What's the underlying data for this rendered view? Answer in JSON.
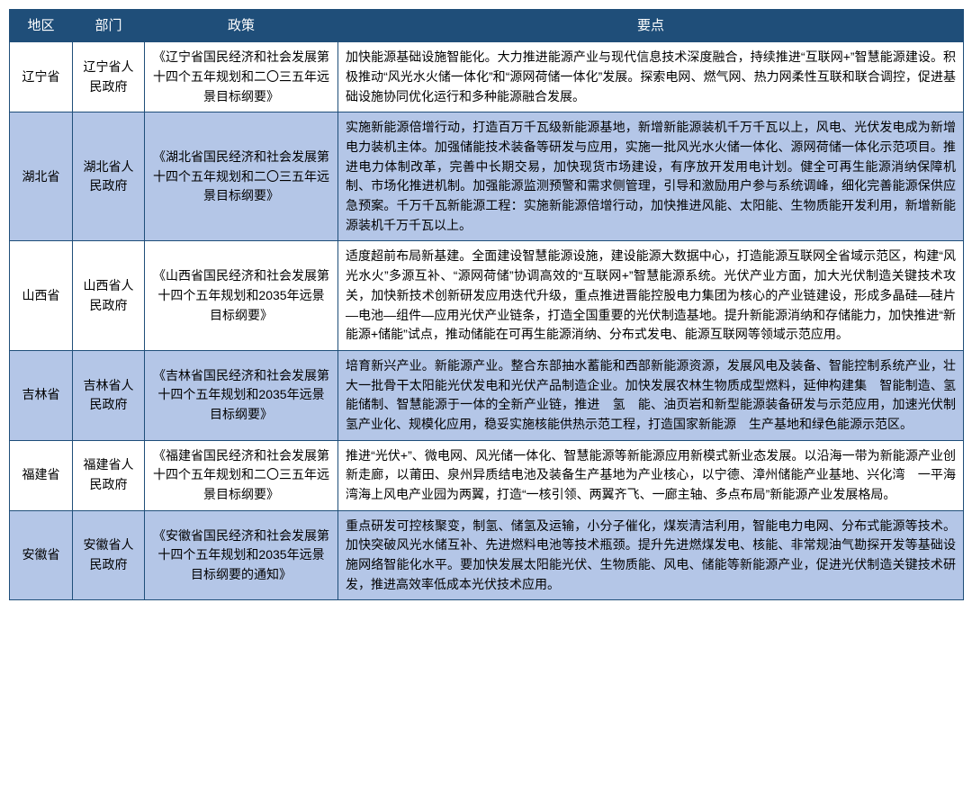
{
  "table": {
    "header_bg": "#1f4e79",
    "header_fg": "#ffffff",
    "row_alt_bg": "#b4c6e7",
    "row_bg": "#ffffff",
    "border_color": "#1f4e79",
    "font_size_header": 15,
    "font_size_body": 14,
    "columns": [
      "地区",
      "部门",
      "政策",
      "要点"
    ],
    "rows": [
      {
        "region": "辽宁省",
        "dept": "辽宁省人民政府",
        "policy": "《辽宁省国民经济和社会发展第十四个五年规划和二〇三五年远景目标纲要》",
        "points": "加快能源基础设施智能化。大力推进能源产业与现代信息技术深度融合，持续推进“互联网+”智慧能源建设。积极推动“风光水火储一体化”和“源网荷储一体化”发展。探索电网、燃气网、热力网柔性互联和联合调控，促进基础设施协同优化运行和多种能源融合发展。"
      },
      {
        "region": "湖北省",
        "dept": "湖北省人民政府",
        "policy": "《湖北省国民经济和社会发展第十四个五年规划和二〇三五年远景目标纲要》",
        "points": "实施新能源倍增行动，打造百万千瓦级新能源基地，新增新能源装机千万千瓦以上，风电、光伏发电成为新增电力装机主体。加强储能技术装备等研发与应用，实施一批风光水火储一体化、源网荷储一体化示范项目。推进电力体制改革，完善中长期交易，加快现货市场建设，有序放开发用电计划。健全可再生能源消纳保障机制、市场化推进机制。加强能源监测预警和需求侧管理，引导和激励用户参与系统调峰，细化完善能源保供应急预案。千万千瓦新能源工程：实施新能源倍增行动，加快推进风能、太阳能、生物质能开发利用，新增新能源装机千万千瓦以上。"
      },
      {
        "region": "山西省",
        "dept": "山西省人民政府",
        "policy": "《山西省国民经济和社会发展第十四个五年规划和2035年远景目标纲要》",
        "points": "适度超前布局新基建。全面建设智慧能源设施，建设能源大数据中心，打造能源互联网全省域示范区，构建“风光水火”多源互补、“源网荷储”协调高效的“互联网+”智慧能源系统。光伏产业方面，加大光伏制造关键技术攻关，加快新技术创新研发应用迭代升级，重点推进晋能控股电力集团为核心的产业链建设，形成多晶硅—硅片—电池—组件—应用光伏产业链条，打造全国重要的光伏制造基地。提升新能源消纳和存储能力，加快推进“新能源+储能”试点，推动储能在可再生能源消纳、分布式发电、能源互联网等领域示范应用。"
      },
      {
        "region": "吉林省",
        "dept": "吉林省人民政府",
        "policy": "《吉林省国民经济和社会发展第十四个五年规划和2035年远景目标纲要》",
        "points": "培育新兴产业。新能源产业。整合东部抽水蓄能和西部新能源资源，发展风电及装备、智能控制系统产业，壮大一批骨干太阳能光伏发电和光伏产品制造企业。加快发展农林生物质成型燃料，延伸构建集　智能制造、氢能储制、智慧能源于一体的全新产业链，推进　氢　能、油页岩和新型能源装备研发与示范应用，加速光伏制氢产业化、规模化应用，稳妥实施核能供热示范工程，打造国家新能源　生产基地和绿色能源示范区。"
      },
      {
        "region": "福建省",
        "dept": "福建省人民政府",
        "policy": "《福建省国民经济和社会发展第十四个五年规划和二〇三五年远景目标纲要》",
        "points": "推进“光伏+”、微电网、风光储一体化、智慧能源等新能源应用新模式新业态发展。以沿海一带为新能源产业创新走廊，以莆田、泉州异质结电池及装备生产基地为产业核心，以宁德、漳州储能产业基地、兴化湾　一平海湾海上风电产业园为两翼，打造“一核引领、两翼齐飞、一廊主轴、多点布局”新能源产业发展格局。"
      },
      {
        "region": "安徽省",
        "dept": "安徽省人民政府",
        "policy": "《安徽省国民经济和社会发展第十四个五年规划和2035年远景目标纲要的通知》",
        "points": "重点研发可控核聚变，制氢、储氢及运输，小分子催化，煤炭清洁利用，智能电力电网、分布式能源等技术。加快突破风光水储互补、先进燃料电池等技术瓶颈。提升先进燃煤发电、核能、非常规油气勘探开发等基础设施网络智能化水平。要加快发展太阳能光伏、生物质能、风电、储能等新能源产业，促进光伏制造关键技术研发，推进高效率低成本光伏技术应用。"
      }
    ]
  }
}
